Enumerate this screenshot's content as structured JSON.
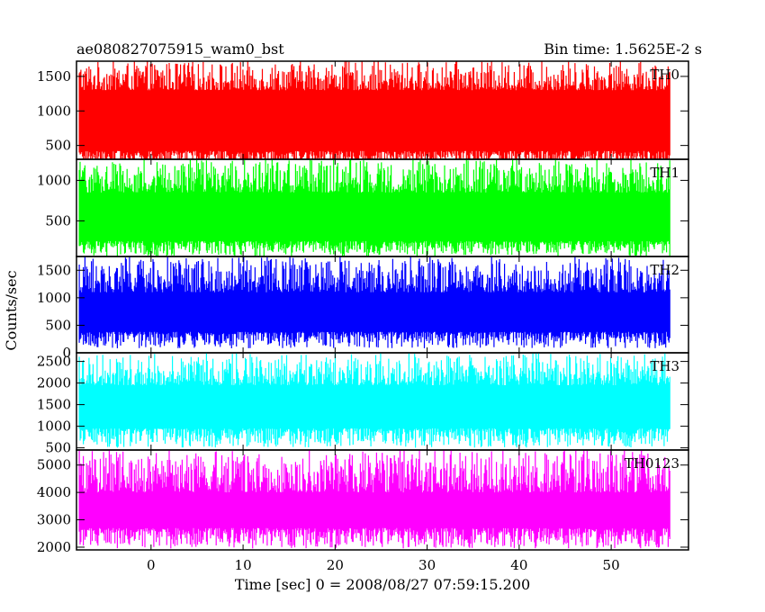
{
  "header": {
    "obs_id": "ae080827075915_wam0_bst",
    "bin_time": "Bin time: 1.5625E-2 s"
  },
  "chart_data": {
    "type": "line",
    "xlabel": "Time [sec] 0 = 2008/08/27 07:59:15.200",
    "ylabel": "Counts/sec",
    "xlim": [
      -8.1,
      58.4
    ],
    "x_ticks": [
      0,
      10,
      20,
      30,
      40,
      50
    ],
    "x_start": -7.8,
    "x_end": 56.4,
    "panels": [
      {
        "name": "TH0",
        "color": "#ff0000",
        "ylim": [
          300,
          1720
        ],
        "y_ticks": [
          500,
          1000,
          1500
        ],
        "band_low": 150,
        "band_high": 1720,
        "low_lo": 150,
        "low_hi": 420,
        "high_lo": 1300,
        "high_hi": 1720
      },
      {
        "name": "TH1",
        "color": "#00ff00",
        "ylim": [
          60,
          1260
        ],
        "y_ticks": [
          500,
          1000
        ],
        "band_low": 60,
        "band_high": 1260,
        "low_lo": 60,
        "low_hi": 250,
        "high_lo": 850,
        "high_hi": 1260
      },
      {
        "name": "TH2",
        "color": "#0000ff",
        "ylim": [
          0,
          1750
        ],
        "y_ticks": [
          0,
          500,
          1000,
          1500
        ],
        "band_low": 80,
        "band_high": 1750,
        "low_lo": 80,
        "low_hi": 380,
        "high_lo": 1100,
        "high_hi": 1750
      },
      {
        "name": "TH3",
        "color": "#00ffff",
        "ylim": [
          450,
          2700
        ],
        "y_ticks": [
          500,
          1000,
          1500,
          2000,
          2500
        ],
        "band_low": 500,
        "band_high": 2700,
        "low_lo": 500,
        "low_hi": 950,
        "high_lo": 1950,
        "high_hi": 2700
      },
      {
        "name": "TH0123",
        "color": "#ff00ff",
        "ylim": [
          1900,
          5550
        ],
        "y_ticks": [
          2000,
          3000,
          4000,
          5000
        ],
        "band_low": 1950,
        "band_high": 5550,
        "low_lo": 1950,
        "low_hi": 2700,
        "high_lo": 4000,
        "high_hi": 5550
      }
    ]
  }
}
